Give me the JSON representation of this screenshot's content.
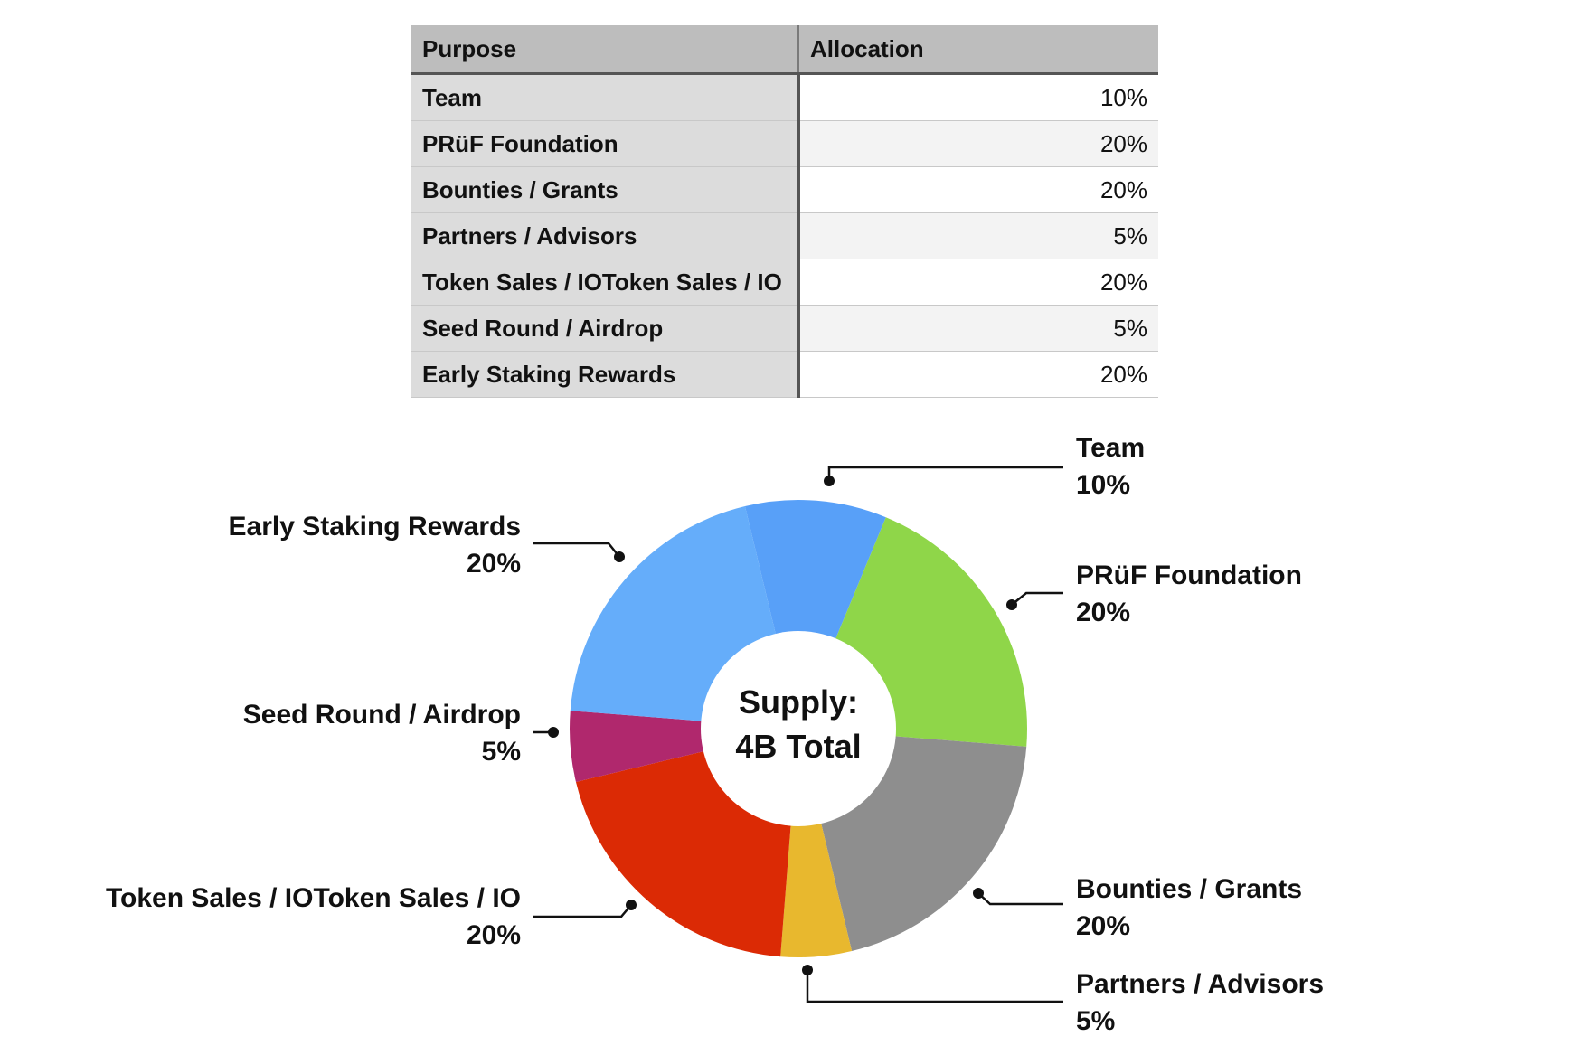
{
  "table": {
    "headers": [
      "Purpose",
      "Allocation"
    ],
    "rows": [
      {
        "purpose": "Team",
        "allocation": "10%"
      },
      {
        "purpose": "PRüF Foundation",
        "allocation": "20%"
      },
      {
        "purpose": "Bounties / Grants",
        "allocation": "20%"
      },
      {
        "purpose": "Partners / Advisors",
        "allocation": "5%"
      },
      {
        "purpose": "Token Sales / IOToken Sales / IO",
        "allocation": "20%"
      },
      {
        "purpose": "Seed Round / Airdrop",
        "allocation": "5%"
      },
      {
        "purpose": "Early Staking Rewards",
        "allocation": "20%"
      }
    ]
  },
  "chart_data": {
    "type": "pie",
    "donut": true,
    "center_label": [
      "Supply:",
      "4B Total"
    ],
    "slices": [
      {
        "label": "Team",
        "value": 10,
        "display": "10%",
        "color": "#58a0f8"
      },
      {
        "label": "PRüF Foundation",
        "value": 20,
        "display": "20%",
        "color": "#8fd649"
      },
      {
        "label": "Bounties / Grants",
        "value": 20,
        "display": "20%",
        "color": "#8e8e8e"
      },
      {
        "label": "Partners / Advisors",
        "value": 5,
        "display": "5%",
        "color": "#e8b82e"
      },
      {
        "label": "Token Sales / IOToken Sales / IO",
        "value": 20,
        "display": "20%",
        "color": "#db2a05"
      },
      {
        "label": "Seed Round / Airdrop",
        "value": 5,
        "display": "5%",
        "color": "#b0286d"
      },
      {
        "label": "Early Staking Rewards",
        "value": 20,
        "display": "20%",
        "color": "#65adfa"
      }
    ]
  }
}
